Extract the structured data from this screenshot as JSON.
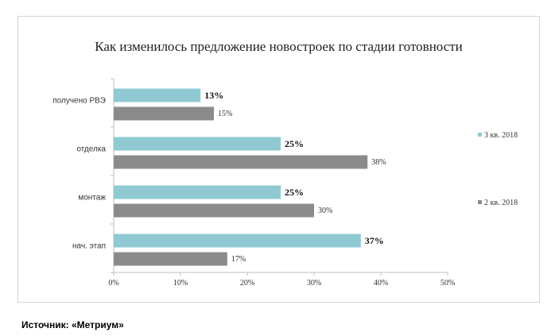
{
  "chart_data": {
    "type": "bar",
    "orientation": "horizontal",
    "title": "Как изменилось предложение новостроек по стадии готовности",
    "categories": [
      "получено РВЭ",
      "отделка",
      "монтаж",
      "нач. этап"
    ],
    "series": [
      {
        "name": "3 кв. 2018",
        "values": [
          13,
          25,
          25,
          37
        ],
        "color": "#8fcad2",
        "labels_bold": true
      },
      {
        "name": "2 кв. 2018",
        "values": [
          15,
          38,
          30,
          17
        ],
        "color": "#8b8b8b",
        "labels_bold": false
      }
    ],
    "value_suffix": "%",
    "xlim": [
      0,
      50
    ],
    "xticks": [
      "0%",
      "10%",
      "20%",
      "30%",
      "40%",
      "50%"
    ],
    "xlabel": "",
    "ylabel": "",
    "grid": false,
    "legend_position": "right"
  },
  "source_note": "Источник: «Метриум»"
}
